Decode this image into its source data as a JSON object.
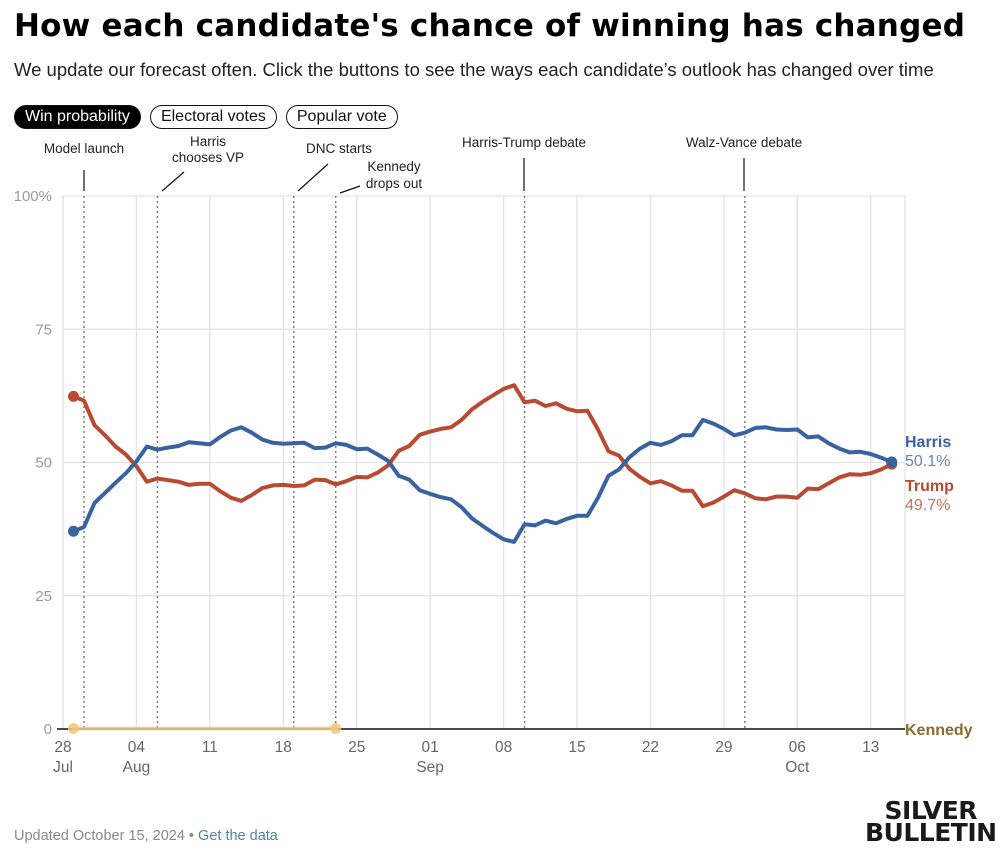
{
  "header": {
    "title": "How each candidate's chance of winning has changed",
    "subtitle": "We update our forecast often. Click the buttons to see the ways each candidate’s outlook has changed over time"
  },
  "tabs": [
    {
      "label": "Win probability",
      "active": true
    },
    {
      "label": "Electoral votes",
      "active": false
    },
    {
      "label": "Popular vote",
      "active": false
    }
  ],
  "footer": {
    "updated": "Updated October 15, 2024",
    "separator": " • ",
    "link": "Get the data"
  },
  "logo": {
    "line1": "SILVER",
    "line2": "BULLETIN"
  },
  "colors": {
    "harris": "#3a62a0",
    "trump": "#b84a32",
    "kennedy": "#f0c77a",
    "kennedy_label": "#8a6a30"
  },
  "chart_data": {
    "type": "line",
    "title": "How each candidate's chance of winning has changed",
    "xlabel": "",
    "ylabel": "",
    "ylim": [
      0,
      100
    ],
    "y_ticks": [
      {
        "value": 100,
        "label": "100%"
      },
      {
        "value": 75,
        "label": "75"
      },
      {
        "value": 50,
        "label": "50"
      },
      {
        "value": 25,
        "label": "25"
      },
      {
        "value": 0,
        "label": "0"
      }
    ],
    "x_start": "2024-07-26",
    "x_end": "2024-10-19",
    "x_ticks": [
      {
        "date": "2024-07-28",
        "day": "28",
        "month": "Jul"
      },
      {
        "date": "2024-08-04",
        "day": "04",
        "month": "Aug"
      },
      {
        "date": "2024-08-11",
        "day": "11",
        "month": ""
      },
      {
        "date": "2024-08-18",
        "day": "18",
        "month": ""
      },
      {
        "date": "2024-08-25",
        "day": "25",
        "month": ""
      },
      {
        "date": "2024-09-01",
        "day": "01",
        "month": "Sep"
      },
      {
        "date": "2024-09-08",
        "day": "08",
        "month": ""
      },
      {
        "date": "2024-09-15",
        "day": "15",
        "month": ""
      },
      {
        "date": "2024-09-22",
        "day": "22",
        "month": ""
      },
      {
        "date": "2024-09-29",
        "day": "29",
        "month": ""
      },
      {
        "date": "2024-10-06",
        "day": "06",
        "month": "Oct"
      },
      {
        "date": "2024-10-13",
        "day": "13",
        "month": ""
      }
    ],
    "grid": true,
    "events": [
      {
        "date": "2024-07-30",
        "label": [
          "Model launch"
        ],
        "leader": "vertical"
      },
      {
        "date": "2024-08-06",
        "label": [
          "Harris",
          "chooses VP"
        ],
        "leader": "diagonal"
      },
      {
        "date": "2024-08-19",
        "label": [
          "DNC starts"
        ],
        "leader": "diagonal"
      },
      {
        "date": "2024-08-23",
        "label": [
          "Kennedy",
          "drops out"
        ],
        "leader": "diagonal"
      },
      {
        "date": "2024-09-10",
        "label": [
          "Harris-Trump debate"
        ],
        "leader": "vertical"
      },
      {
        "date": "2024-10-01",
        "label": [
          "Walz-Vance debate"
        ],
        "leader": "vertical"
      }
    ],
    "series": [
      {
        "name": "Harris",
        "final_label": "50.1%",
        "start_date": "2024-07-29",
        "values": [
          37.1,
          37.9,
          42.4,
          44.3,
          46.2,
          48.0,
          50.2,
          53.0,
          52.4,
          52.8,
          53.1,
          53.8,
          53.6,
          53.4,
          54.8,
          56.0,
          56.6,
          55.6,
          54.3,
          53.7,
          53.5,
          53.6,
          53.7,
          52.7,
          52.8,
          53.6,
          53.3,
          52.5,
          52.6,
          51.5,
          50.3,
          47.5,
          46.8,
          44.8,
          44.1,
          43.5,
          43.1,
          41.6,
          39.5,
          38.1,
          36.8,
          35.6,
          35.1,
          38.4,
          38.2,
          39.1,
          38.6,
          39.4,
          40.0,
          40.0,
          43.4,
          47.5,
          48.7,
          51.0,
          52.6,
          53.7,
          53.3,
          54.0,
          55.1,
          55.1,
          58.0,
          57.3,
          56.3,
          55.1,
          55.6,
          56.5,
          56.6,
          56.2,
          56.1,
          56.2,
          54.7,
          54.9,
          53.6,
          52.6,
          51.9,
          52.0,
          51.6,
          50.9,
          50.1
        ]
      },
      {
        "name": "Trump",
        "final_label": "49.7%",
        "start_date": "2024-07-29",
        "values": [
          62.4,
          61.6,
          57.0,
          55.1,
          53.0,
          51.5,
          49.3,
          46.4,
          47.0,
          46.7,
          46.4,
          45.8,
          46.0,
          46.0,
          44.6,
          43.4,
          42.8,
          43.9,
          45.2,
          45.7,
          45.8,
          45.6,
          45.7,
          46.8,
          46.7,
          45.9,
          46.5,
          47.3,
          47.2,
          48.1,
          49.5,
          52.2,
          53.1,
          55.2,
          55.8,
          56.3,
          56.6,
          58.0,
          60.0,
          61.4,
          62.6,
          63.8,
          64.5,
          61.3,
          61.6,
          60.6,
          61.1,
          60.1,
          59.6,
          59.7,
          56.2,
          52.1,
          51.3,
          48.8,
          47.3,
          46.1,
          46.5,
          45.7,
          44.7,
          44.7,
          41.8,
          42.5,
          43.6,
          44.8,
          44.2,
          43.3,
          43.1,
          43.6,
          43.6,
          43.4,
          45.1,
          45.0,
          46.1,
          47.2,
          47.8,
          47.7,
          48.0,
          48.7,
          49.7
        ]
      },
      {
        "name": "Kennedy",
        "final_label": "",
        "start_date": "2024-07-29",
        "values": [
          0.1,
          0.1,
          0.1,
          0.1,
          0.1,
          0.1,
          0.1,
          0.1,
          0.1,
          0.1,
          0.1,
          0.1,
          0.1,
          0.1,
          0.1,
          0.1,
          0.1,
          0.1,
          0.1,
          0.1,
          0.1,
          0.1,
          0.1,
          0.1,
          0.1,
          0.1
        ]
      }
    ]
  }
}
